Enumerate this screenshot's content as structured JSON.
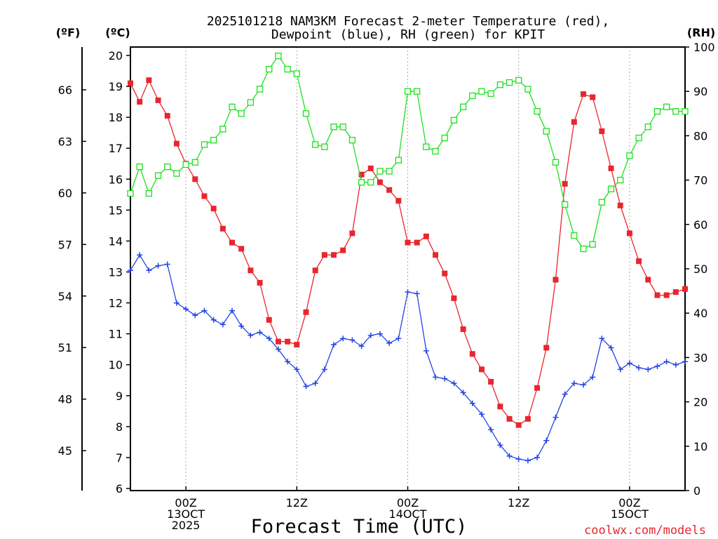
{
  "chart_data": {
    "type": "line",
    "title": [
      "2025101218 NAM3KM Forecast 2-meter Temperature (red),",
      "Dewpoint (blue), RH (green) for KPIT"
    ],
    "xlabel": "Forecast Time (UTC)",
    "credit": "coolwx.com/models",
    "left_unit_f": "(ºF)",
    "left_unit_c": "(ºC)",
    "right_unit": "(RH)",
    "celsius_range": [
      6,
      20
    ],
    "celsius_ticks": [
      "6",
      "7",
      "8",
      "9",
      "10",
      "11",
      "12",
      "13",
      "14",
      "15",
      "16",
      "17",
      "18",
      "19",
      "20"
    ],
    "fahrenheit_ticks": [
      {
        "value": 45,
        "label": "45"
      },
      {
        "value": 48,
        "label": "48"
      },
      {
        "value": 51,
        "label": "51"
      },
      {
        "value": 54,
        "label": "54"
      },
      {
        "value": 57,
        "label": "57"
      },
      {
        "value": 60,
        "label": "60"
      },
      {
        "value": 63,
        "label": "63"
      },
      {
        "value": 66,
        "label": "66"
      }
    ],
    "rh_range": [
      0,
      100
    ],
    "rh_ticks": [
      "0",
      "10",
      "20",
      "30",
      "40",
      "50",
      "60",
      "70",
      "80",
      "90",
      "100"
    ],
    "x_range_hours": [
      0,
      60
    ],
    "x_ticks": [
      {
        "hour": 6,
        "lines": [
          "00Z",
          "13OCT",
          "2025"
        ]
      },
      {
        "hour": 18,
        "lines": [
          "12Z"
        ]
      },
      {
        "hour": 30,
        "lines": [
          "00Z",
          "14OCT"
        ]
      },
      {
        "hour": 42,
        "lines": [
          "12Z"
        ]
      },
      {
        "hour": 54,
        "lines": [
          "00Z",
          "15OCT"
        ]
      }
    ],
    "series": [
      {
        "name": "2-meter Temperature",
        "unit": "C",
        "color": "#e8262e",
        "marker": "filled-square",
        "values": [
          19.1,
          18.5,
          19.2,
          18.55,
          18.05,
          17.15,
          16.5,
          16.0,
          15.45,
          15.05,
          14.4,
          13.95,
          13.75,
          13.05,
          12.65,
          11.45,
          10.75,
          10.75,
          10.65,
          11.7,
          13.05,
          13.55,
          13.55,
          13.7,
          14.25,
          16.15,
          16.35,
          15.9,
          15.65,
          15.3,
          13.95,
          13.95,
          14.15,
          13.55,
          12.95,
          12.15,
          11.15,
          10.35,
          9.85,
          9.45,
          8.65,
          8.25,
          8.05,
          8.25,
          9.25,
          10.55,
          12.75,
          15.85,
          17.85,
          18.75,
          18.65,
          17.55,
          16.35,
          15.15,
          14.25,
          13.35,
          12.75,
          12.25,
          12.25,
          12.35,
          12.45
        ]
      },
      {
        "name": "Dewpoint",
        "unit": "C",
        "color": "#2444e8",
        "marker": "plus",
        "values": [
          13.05,
          13.55,
          13.05,
          13.2,
          13.25,
          12.0,
          11.8,
          11.6,
          11.75,
          11.45,
          11.3,
          11.75,
          11.25,
          10.95,
          11.05,
          10.85,
          10.5,
          10.1,
          9.85,
          9.3,
          9.4,
          9.85,
          10.65,
          10.85,
          10.8,
          10.6,
          10.95,
          11.0,
          10.7,
          10.85,
          12.35,
          12.3,
          10.45,
          9.6,
          9.55,
          9.4,
          9.1,
          8.75,
          8.4,
          7.9,
          7.4,
          7.05,
          6.95,
          6.9,
          7.0,
          7.55,
          8.3,
          9.05,
          9.4,
          9.35,
          9.6,
          10.85,
          10.55,
          9.85,
          10.05,
          9.9,
          9.85,
          9.95,
          10.1,
          10.0,
          10.1
        ]
      },
      {
        "name": "RH",
        "unit": "%",
        "color": "#1ee01e",
        "marker": "open-square",
        "values": [
          67,
          73,
          67,
          71,
          73,
          71.5,
          73.5,
          74,
          78,
          79,
          81.5,
          86.5,
          85,
          87.5,
          90.5,
          95,
          98,
          95,
          94,
          85,
          78,
          77.5,
          82,
          82,
          79,
          69.5,
          69.5,
          72,
          72,
          74.5,
          90,
          90,
          77.5,
          76.5,
          79.5,
          83.5,
          86.5,
          89,
          90,
          89.5,
          91.5,
          92,
          92.5,
          90.5,
          85.5,
          81,
          74,
          64.5,
          57.5,
          54.5,
          55.5,
          65,
          68,
          70,
          75.5,
          79.5,
          82,
          85.5,
          86.5,
          85.5,
          85.5
        ]
      }
    ]
  }
}
